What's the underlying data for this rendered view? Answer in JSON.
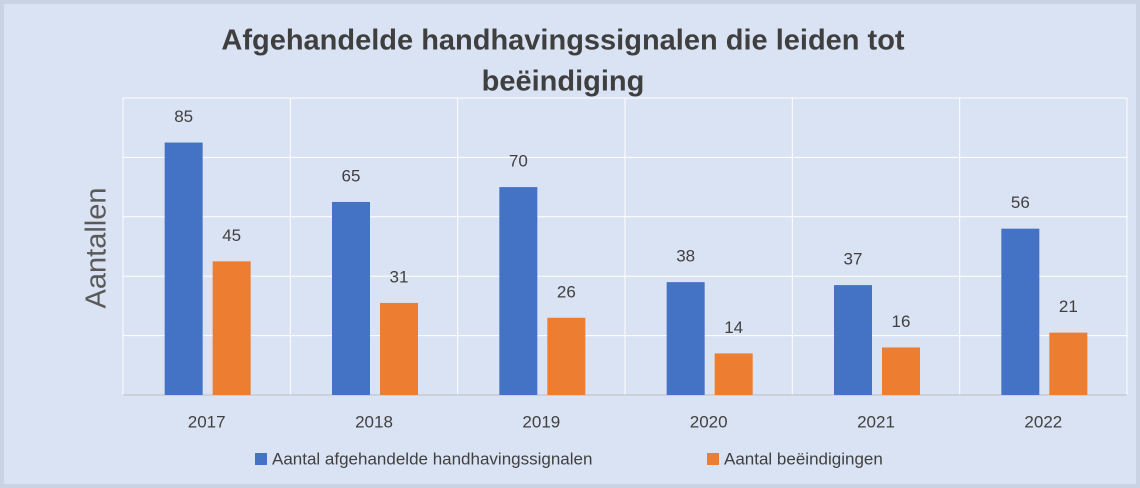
{
  "chart_data": {
    "type": "bar",
    "title_lines": [
      "Afgehandelde handhavingssignalen die leiden tot",
      "beëindiging"
    ],
    "ylabel": "Aantallen",
    "categories": [
      "2017",
      "2018",
      "2019",
      "2020",
      "2021",
      "2022"
    ],
    "series": [
      {
        "name": "Aantal afgehandelde handhavingssignalen",
        "color": "#4472c4",
        "values": [
          85,
          65,
          70,
          38,
          37,
          56
        ]
      },
      {
        "name": "Aantal beëindigingen",
        "color": "#ed7d31",
        "values": [
          45,
          31,
          26,
          14,
          16,
          21
        ]
      }
    ],
    "ylim": [
      0,
      100
    ],
    "yticks": [
      0,
      20,
      40,
      60,
      80,
      100
    ],
    "grid": true,
    "legend": "bottom"
  }
}
